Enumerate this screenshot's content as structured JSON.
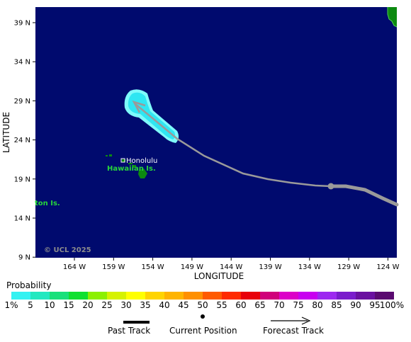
{
  "map": {
    "x_axis_title": "LONGITUDE",
    "y_axis_title": "LATITUDE",
    "lon_ticks": [
      "164 W",
      "159 W",
      "154 W",
      "149 W",
      "144 W",
      "139 W",
      "134 W",
      "129 W",
      "124 W"
    ],
    "lat_ticks": [
      "39 N",
      "34 N",
      "29 N",
      "24 N",
      "19 N",
      "14 N",
      "9 N"
    ],
    "place_labels": {
      "honolulu": "Honolulu",
      "hawaiian_islands": "Hawaiian Is.",
      "johnston_islands": "ton Is."
    },
    "copyright": "© UCL 2025",
    "colors": {
      "ocean": "#000a6e",
      "land": "#0c8a10",
      "land_label": "#27d63b",
      "past_track": "#9a9a9a",
      "forecast_track": "#9a9a9a",
      "probability_area": "#7ffafa",
      "probability_area_core": "#2fe6f2"
    }
  },
  "legend": {
    "title": "Probability",
    "labels": [
      "1%",
      "5",
      "10",
      "15",
      "20",
      "25",
      "30",
      "35",
      "40",
      "45",
      "50",
      "55",
      "60",
      "65",
      "70",
      "75",
      "80",
      "85",
      "90",
      "95",
      "100%"
    ],
    "colors": [
      "#9ffcff",
      "#33f2f2",
      "#22e8c0",
      "#18e07a",
      "#10e030",
      "#8cf000",
      "#d6f200",
      "#ffff00",
      "#ffd400",
      "#ffb400",
      "#ff9000",
      "#ff5a00",
      "#ff2a00",
      "#e8000a",
      "#d0007a",
      "#dc00c8",
      "#c800f0",
      "#9c28f0",
      "#7a1ccc",
      "#6a10a0",
      "#5a0a70"
    ]
  },
  "track_key": {
    "past": "Past Track",
    "current": "Current Position",
    "forecast": "Forecast Track"
  }
}
